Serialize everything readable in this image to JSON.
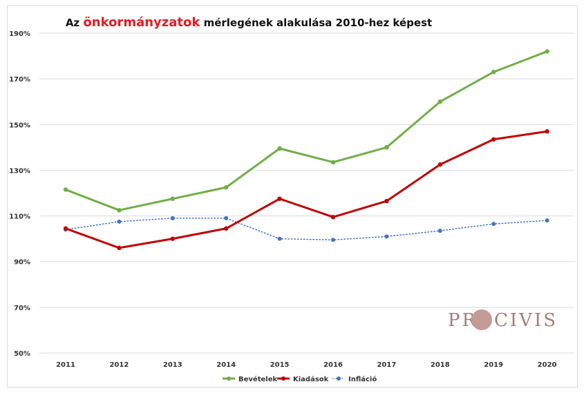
{
  "title": {
    "prefix": "Az",
    "highlight": "önkormányzatok",
    "suffix": "mérlegének alakulása 2010-hez képest"
  },
  "logo": {
    "left": "PR",
    "right": "CIVIS",
    "circle_color": "#c49a96",
    "text_color": "#a87b78"
  },
  "chart_data": {
    "type": "line",
    "title": "Az önkormányzatok mérlegének alakulása 2010-hez képest",
    "categories": [
      "2011",
      "2012",
      "2013",
      "2014",
      "2015",
      "2016",
      "2017",
      "2018",
      "2019",
      "2020"
    ],
    "ylim": [
      50,
      190
    ],
    "yticks": [
      50,
      70,
      90,
      110,
      130,
      150,
      170,
      190
    ],
    "ytick_labels": [
      "50%",
      "70%",
      "90%",
      "110%",
      "130%",
      "150%",
      "170%",
      "190%"
    ],
    "grid": true,
    "legend_position": "bottom",
    "series": [
      {
        "name": "Bevételek",
        "color": "#70ad47",
        "style": "solid",
        "values": [
          121.5,
          112.5,
          117.5,
          122.5,
          139.5,
          133.5,
          140,
          160,
          173,
          182
        ]
      },
      {
        "name": "Kiadások",
        "color": "#c00000",
        "style": "solid",
        "values": [
          104.5,
          96,
          100,
          104.5,
          117.5,
          109.5,
          116.5,
          132.5,
          143.5,
          147
        ]
      },
      {
        "name": "Infláció",
        "color": "#4472c4",
        "style": "dotted",
        "values": [
          104,
          107.5,
          109,
          109,
          100,
          99.5,
          101,
          103.5,
          106.5,
          108
        ]
      }
    ]
  }
}
